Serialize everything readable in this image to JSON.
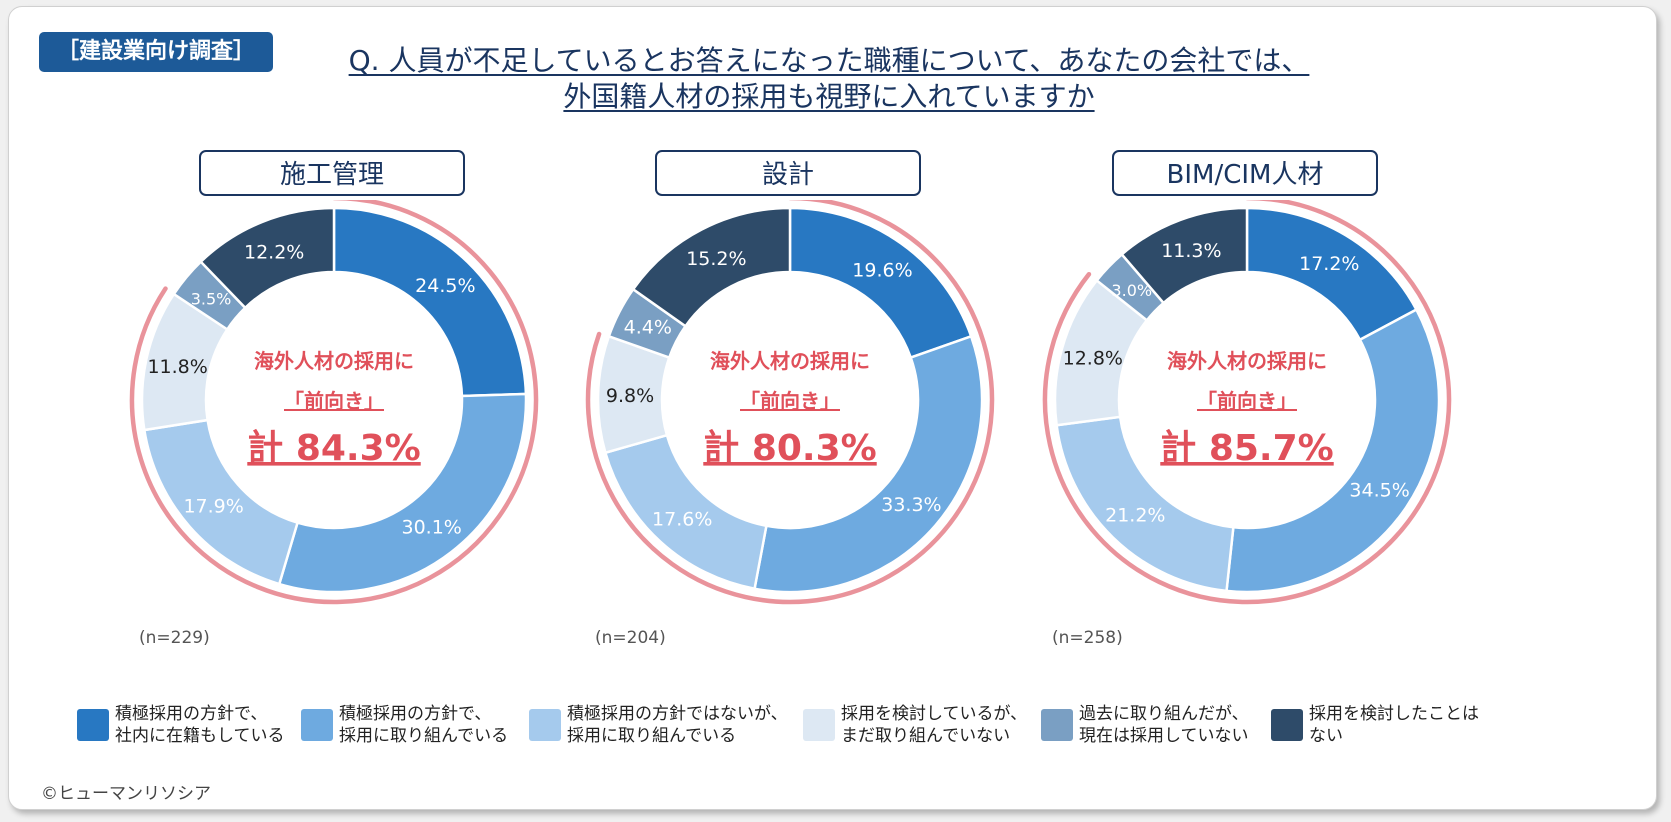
{
  "tag": "［建設業向け調査］",
  "question": {
    "line1": "Q. 人員が不足しているとお答えになった職種について、あなたの会社では、",
    "line2": "外国籍人材の採用も視野に入れていますか"
  },
  "center_text": {
    "line1": "海外人材の採用に",
    "line2": "「前向き」"
  },
  "copyright": "©ヒューマンリソシア",
  "colors": [
    "#2878c2",
    "#6eaae0",
    "#a5caed",
    "#dde8f3",
    "#7a9fc3",
    "#2e4b69"
  ],
  "accent": "#e0505a",
  "chart_data": [
    {
      "type": "pie",
      "title": "施工管理",
      "n_label": "(n=229)",
      "total_label": "計 84.3%",
      "values": [
        24.5,
        30.1,
        17.9,
        11.8,
        3.5,
        12.2
      ],
      "labels": [
        "24.5%",
        "30.1%",
        "17.9%",
        "11.8%",
        "3.5%",
        "12.2%"
      ],
      "positive_total": 84.3
    },
    {
      "type": "pie",
      "title": "設計",
      "n_label": "(n=204)",
      "total_label": "計 80.3%",
      "values": [
        19.6,
        33.3,
        17.6,
        9.8,
        4.4,
        15.2
      ],
      "labels": [
        "19.6%",
        "33.3%",
        "17.6%",
        "9.8%",
        "4.4%",
        "15.2%"
      ],
      "positive_total": 80.3
    },
    {
      "type": "pie",
      "title": "BIM/CIM人材",
      "n_label": "(n=258)",
      "total_label": "計 85.7%",
      "values": [
        17.2,
        34.5,
        21.2,
        12.8,
        3.0,
        11.3
      ],
      "labels": [
        "17.2%",
        "34.5%",
        "21.2%",
        "12.8%",
        "3.0%",
        "11.3%"
      ],
      "positive_total": 85.7
    }
  ],
  "legend": [
    {
      "line1": "積極採用の方針で、",
      "line2": "社内に在籍もしている"
    },
    {
      "line1": "積極採用の方針で、",
      "line2": "採用に取り組んでいる"
    },
    {
      "line1": "積極採用の方針ではないが、",
      "line2": "採用に取り組んでいる"
    },
    {
      "line1": "採用を検討しているが、",
      "line2": "まだ取り組んでいない"
    },
    {
      "line1": "過去に取り組んだが、",
      "line2": "現在は採用していない"
    },
    {
      "line1": "採用を検討したことは",
      "line2": "ない"
    }
  ]
}
